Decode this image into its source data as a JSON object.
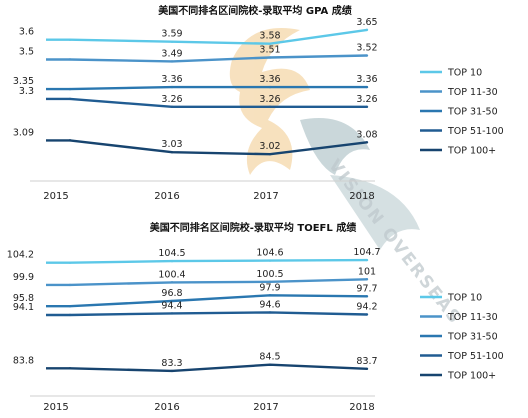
{
  "watermark": {
    "text": "VISION OVERSEAS",
    "colors": [
      "#f1c98a",
      "#9fb8bd"
    ]
  },
  "colors": {
    "TOP 10": "#5cc8e8",
    "TOP 11-30": "#4b93c9",
    "TOP 31-50": "#2a77b0",
    "TOP 51-100": "#205c92",
    "TOP 100+": "#17446f"
  },
  "chart_data": [
    {
      "type": "line",
      "title": "美国不同排名区间院校-录取平均 GPA 成绩",
      "x": [
        "2015",
        "2016",
        "2017",
        "2018"
      ],
      "ylim": [
        2.95,
        3.7
      ],
      "legend": "right",
      "series": [
        {
          "name": "TOP 10",
          "values": [
            3.6,
            3.59,
            3.58,
            3.65
          ]
        },
        {
          "name": "TOP 11-30",
          "values": [
            3.5,
            3.49,
            3.51,
            3.52
          ]
        },
        {
          "name": "TOP 31-50",
          "values": [
            3.35,
            3.36,
            3.36,
            3.36
          ]
        },
        {
          "name": "TOP 51-100",
          "values": [
            3.3,
            3.26,
            3.26,
            3.26
          ]
        },
        {
          "name": "TOP 100+",
          "values": [
            3.09,
            3.03,
            3.02,
            3.08
          ]
        }
      ]
    },
    {
      "type": "line",
      "title": "美国不同排名区间院校-录取平均 TOEFL 成绩",
      "x": [
        "2015",
        "2016",
        "2017",
        "2018"
      ],
      "ylim": [
        80,
        108
      ],
      "legend": "right",
      "series": [
        {
          "name": "TOP 10",
          "values": [
            104.2,
            104.5,
            104.6,
            104.7
          ]
        },
        {
          "name": "TOP 11-30",
          "values": [
            99.9,
            100.4,
            100.5,
            101
          ]
        },
        {
          "name": "TOP 31-50",
          "values": [
            95.8,
            96.8,
            97.9,
            97.7
          ]
        },
        {
          "name": "TOP 51-100",
          "values": [
            94.1,
            94.4,
            94.6,
            94.2
          ]
        },
        {
          "name": "TOP 100+",
          "values": [
            83.8,
            83.3,
            84.5,
            83.7
          ]
        }
      ]
    }
  ]
}
